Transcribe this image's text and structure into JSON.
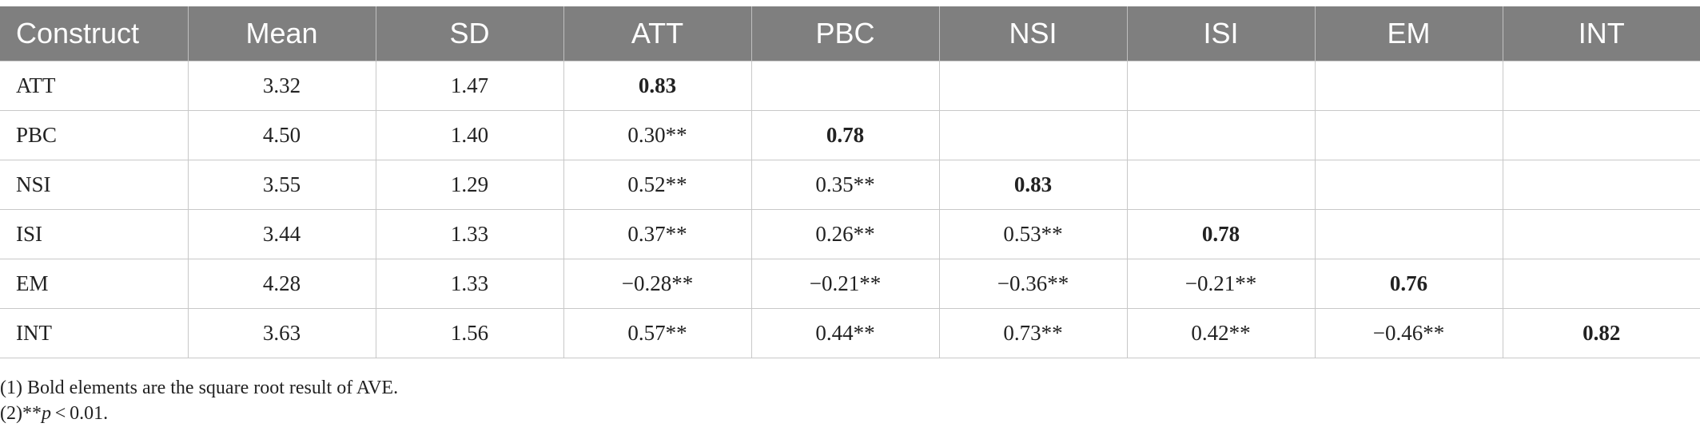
{
  "table": {
    "headers": [
      "Construct",
      "Mean",
      "SD",
      "ATT",
      "PBC",
      "NSI",
      "ISI",
      "EM",
      "INT"
    ],
    "rows": [
      {
        "construct": "ATT",
        "mean": "3.32",
        "sd": "1.47",
        "values": [
          "0.83",
          "",
          "",
          "",
          "",
          ""
        ],
        "diag_index": 0
      },
      {
        "construct": "PBC",
        "mean": "4.50",
        "sd": "1.40",
        "values": [
          "0.30**",
          "0.78",
          "",
          "",
          "",
          ""
        ],
        "diag_index": 1
      },
      {
        "construct": "NSI",
        "mean": "3.55",
        "sd": "1.29",
        "values": [
          "0.52**",
          "0.35**",
          "0.83",
          "",
          "",
          ""
        ],
        "diag_index": 2
      },
      {
        "construct": "ISI",
        "mean": "3.44",
        "sd": "1.33",
        "values": [
          "0.37**",
          "0.26**",
          "0.53**",
          "0.78",
          "",
          ""
        ],
        "diag_index": 3
      },
      {
        "construct": "EM",
        "mean": "4.28",
        "sd": "1.33",
        "values": [
          "−0.28**",
          "−0.21**",
          "−0.36**",
          "−0.21**",
          "0.76",
          ""
        ],
        "diag_index": 4
      },
      {
        "construct": "INT",
        "mean": "3.63",
        "sd": "1.56",
        "values": [
          "0.57**",
          "0.44**",
          "0.73**",
          "0.42**",
          "−0.46**",
          "0.82"
        ],
        "diag_index": 5
      }
    ]
  },
  "notes": {
    "note1": "(1) Bold elements are the square root result of AVE.",
    "note2_prefix": "(2)**",
    "note2_var": "p",
    "note2_suffix": " < 0.01."
  },
  "colors": {
    "header_bg": "#7f7f7f",
    "header_text": "#ffffff",
    "grid": "#c8c8c8"
  }
}
